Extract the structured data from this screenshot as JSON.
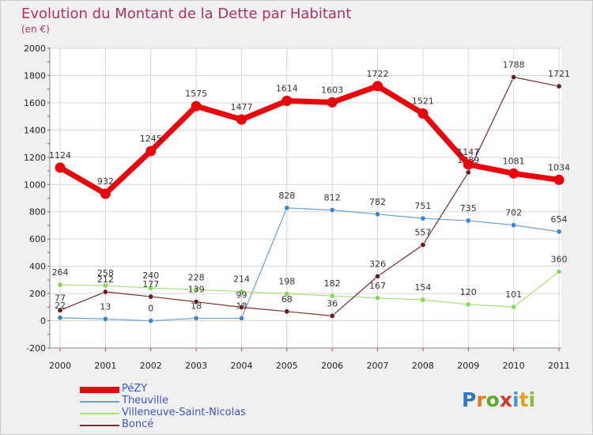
{
  "title": "Evolution du Montant de la Dette par Habitant",
  "unit": "(en €)",
  "logo": {
    "letters": [
      "P",
      "r",
      "o",
      "x",
      "i",
      "t",
      "i"
    ],
    "colors": [
      "#2f77c0",
      "#e07a1a",
      "#5ba82e",
      "#d6372c",
      "#3f9bd6",
      "#e2a21d",
      "#8dbb3a"
    ]
  },
  "chart_data": {
    "type": "line",
    "x": [
      "2000",
      "2001",
      "2002",
      "2003",
      "2004",
      "2005",
      "2006",
      "2007",
      "2008",
      "2009",
      "2010",
      "2011"
    ],
    "ylim": [
      -200,
      2000
    ],
    "yticks": [
      "-200",
      "0",
      "200",
      "400",
      "600",
      "800",
      "1000",
      "1200",
      "1400",
      "1600",
      "1800",
      "2000"
    ],
    "grid": true,
    "series": [
      {
        "name": "Theuville",
        "color": "#6a9fd0",
        "marker": "#3a86d0",
        "width": 1.2,
        "values": [
          22,
          13,
          0,
          18,
          18,
          828,
          812,
          782,
          751,
          735,
          702,
          654
        ],
        "labels": [
          "22",
          "13",
          "0",
          "18",
          "18",
          "828",
          "812",
          "782",
          "751",
          "735",
          "702",
          "654"
        ]
      },
      {
        "name": "Villeneuve-Saint-Nicolas",
        "color": "#a8e07a",
        "marker": "#86d85a",
        "width": 1.2,
        "values": [
          264,
          258,
          240,
          228,
          214,
          198,
          182,
          167,
          154,
          120,
          101,
          360
        ],
        "labels": [
          "264",
          "258",
          "240",
          "228",
          "214",
          "198",
          "182",
          "167",
          "154",
          "120",
          "101",
          "360"
        ]
      },
      {
        "name": "Boncé",
        "color": "#7a2a2a",
        "marker": "#6b1c1c",
        "width": 1.2,
        "values": [
          77,
          212,
          177,
          139,
          99,
          68,
          36,
          326,
          557,
          1089,
          1788,
          1721
        ],
        "labels": [
          "77",
          "212",
          "177",
          "139",
          "99",
          "68",
          "36",
          "326",
          "557",
          "1089",
          "1788",
          "1721"
        ]
      },
      {
        "name": "PéZY",
        "color": "#e8060c",
        "marker": "#e8060c",
        "width": 7,
        "values": [
          1124,
          932,
          1245,
          1575,
          1477,
          1614,
          1603,
          1722,
          1521,
          1147,
          1081,
          1034
        ],
        "labels": [
          "1124",
          "932",
          "1245",
          "1575",
          "1477",
          "1614",
          "1603",
          "1722",
          "1521",
          "1147",
          "1081",
          "1034"
        ]
      }
    ],
    "legend": [
      "PéZY",
      "Theuville",
      "Villeneuve-Saint-Nicolas",
      "Boncé"
    ],
    "legend_position": "bottom-left"
  }
}
